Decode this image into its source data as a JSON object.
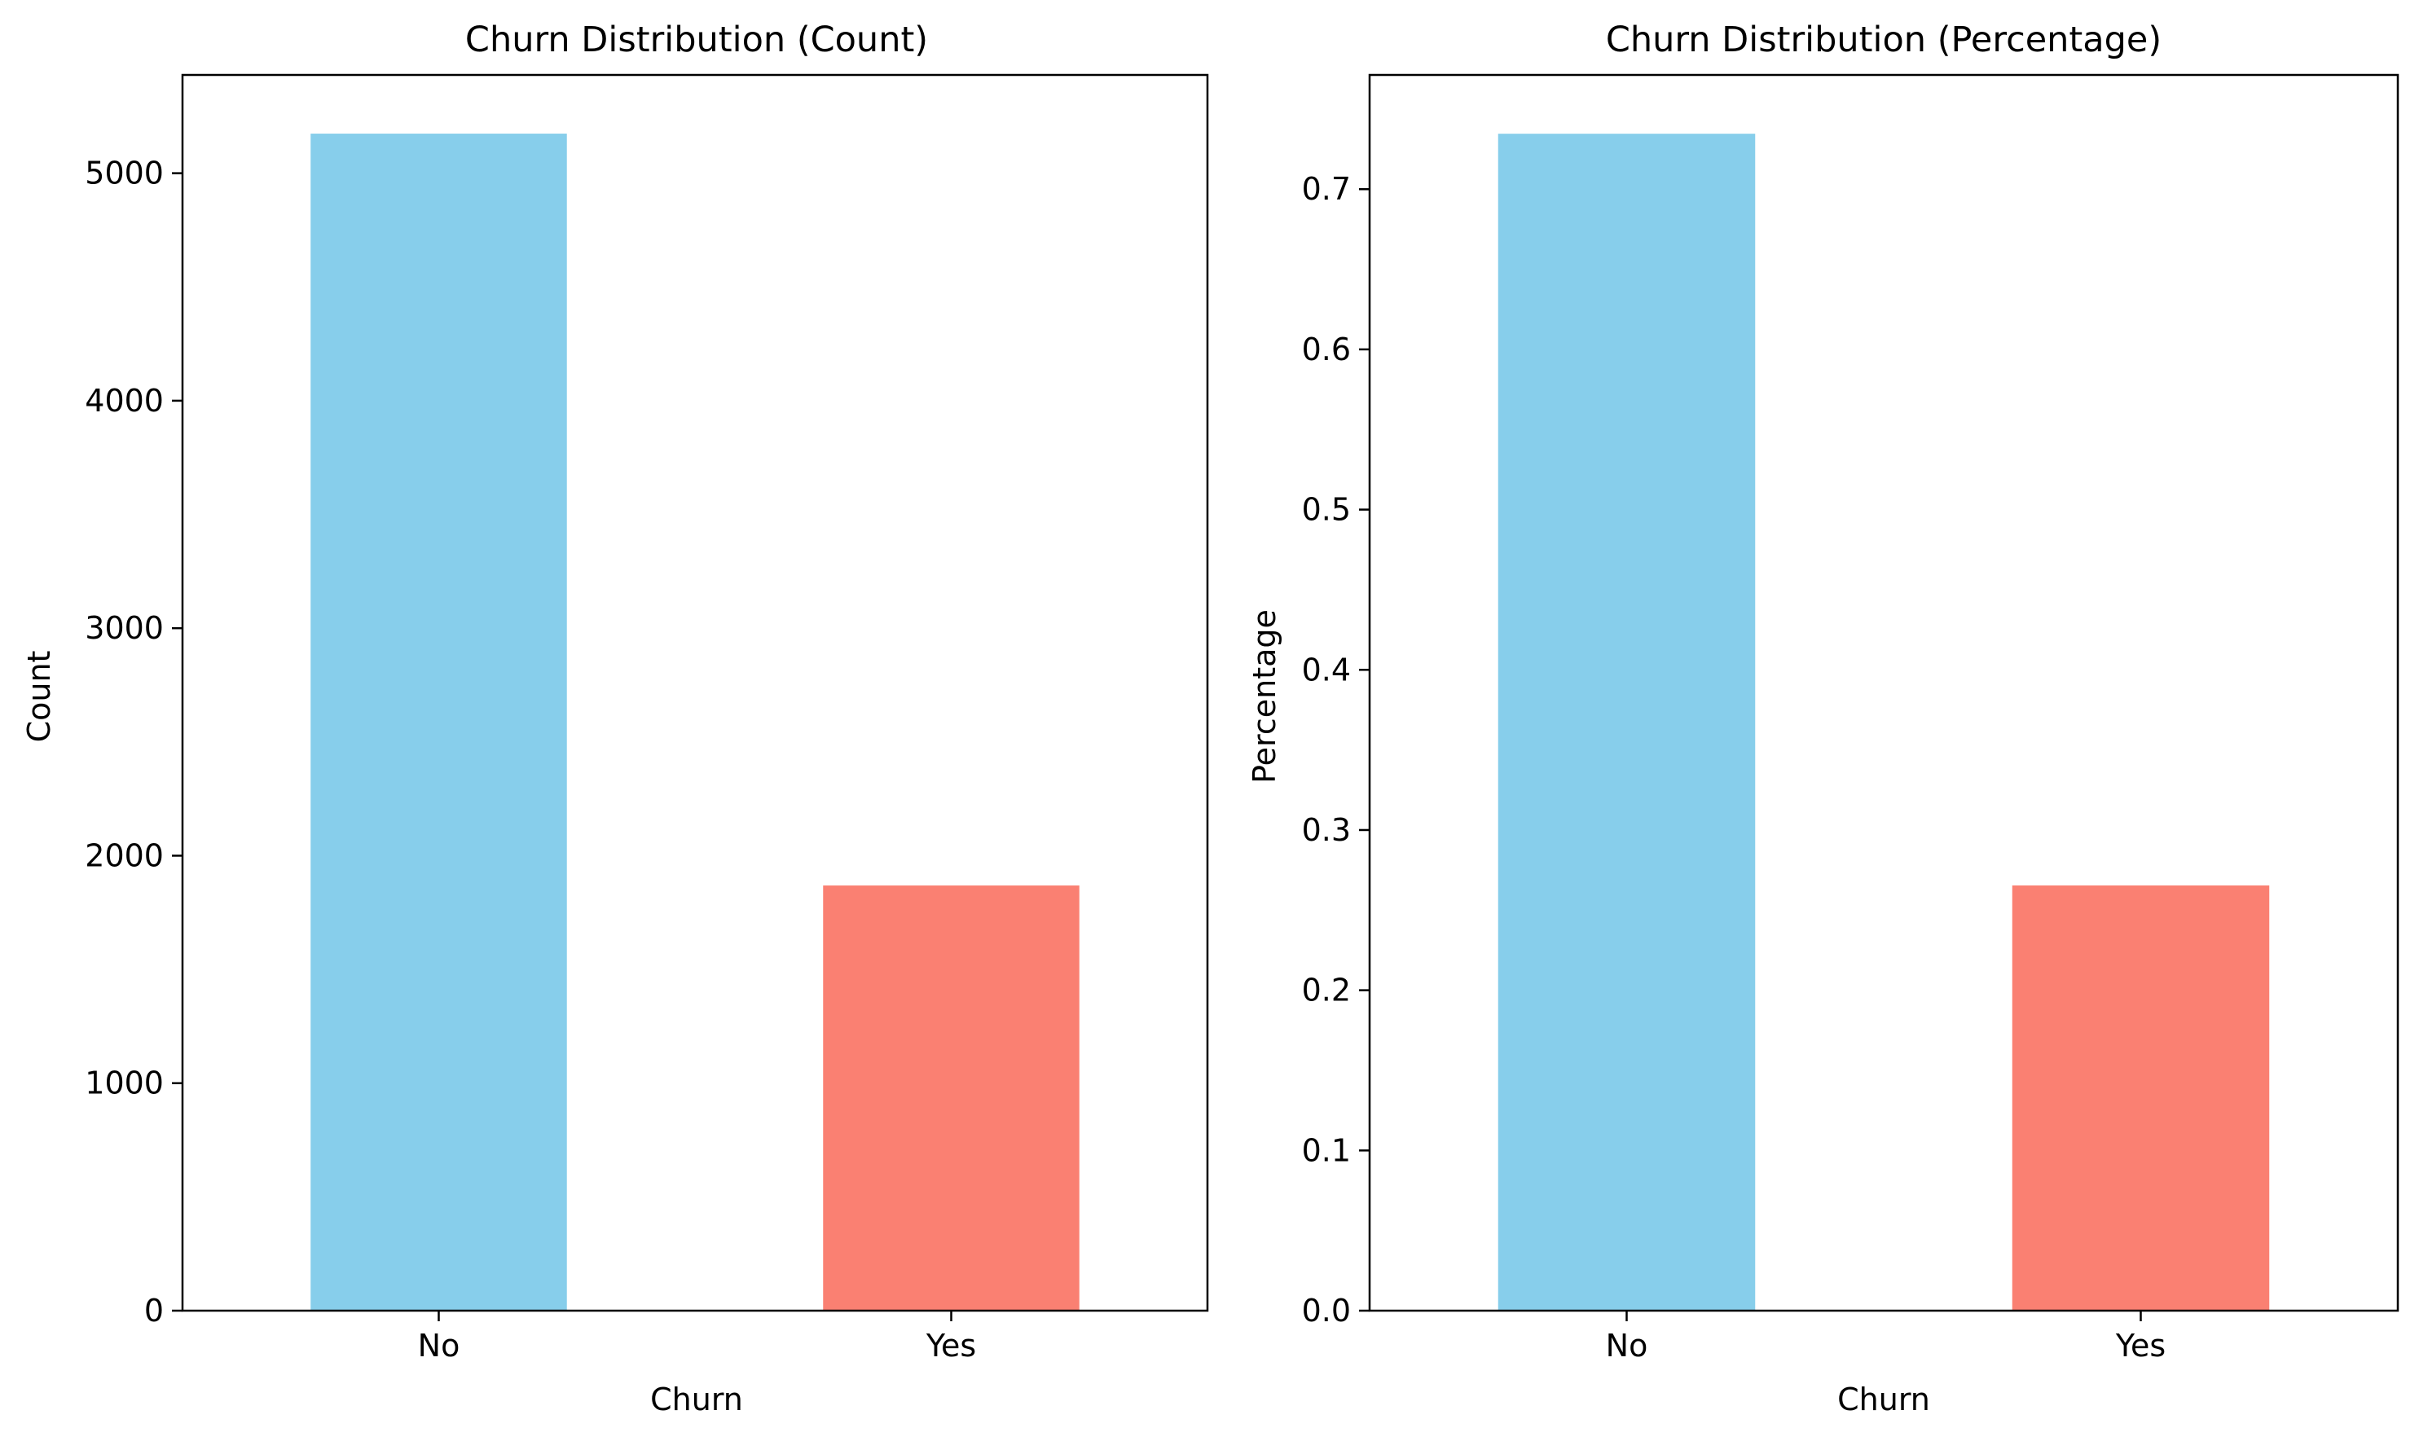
{
  "chart_data": [
    {
      "type": "bar",
      "title": "Churn Distribution (Count)",
      "xlabel": "Churn",
      "ylabel": "Count",
      "categories": [
        "No",
        "Yes"
      ],
      "values": [
        5174,
        1869
      ],
      "colors": [
        "#87CEEB",
        "#FA8072"
      ],
      "ylim": [
        0,
        5432
      ],
      "yticks": [
        0,
        1000,
        2000,
        3000,
        4000,
        5000
      ],
      "ytick_labels": [
        "0",
        "1000",
        "2000",
        "3000",
        "4000",
        "5000"
      ],
      "grid": false,
      "legend": "none"
    },
    {
      "type": "bar",
      "title": "Churn Distribution (Percentage)",
      "xlabel": "Churn",
      "ylabel": "Percentage",
      "categories": [
        "No",
        "Yes"
      ],
      "values": [
        0.7346,
        0.2654
      ],
      "colors": [
        "#87CEEB",
        "#FA8072"
      ],
      "ylim": [
        0,
        0.7713
      ],
      "yticks": [
        0.0,
        0.1,
        0.2,
        0.3,
        0.4,
        0.5,
        0.6,
        0.7
      ],
      "ytick_labels": [
        "0.0",
        "0.1",
        "0.2",
        "0.3",
        "0.4",
        "0.5",
        "0.6",
        "0.7"
      ],
      "grid": false,
      "legend": "none"
    }
  ]
}
